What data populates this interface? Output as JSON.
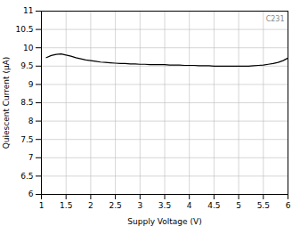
{
  "chart_data": {
    "type": "line",
    "xlabel": "Supply Voltage (V)",
    "ylabel": "Quiescent Current (μA)",
    "x": [
      1.1,
      1.2,
      1.3,
      1.4,
      1.5,
      1.6,
      1.7,
      1.8,
      1.9,
      2.0,
      2.1,
      2.2,
      2.3,
      2.4,
      2.5,
      2.6,
      2.7,
      2.8,
      2.9,
      3.0,
      3.1,
      3.2,
      3.3,
      3.4,
      3.5,
      3.6,
      3.7,
      3.8,
      3.9,
      4.0,
      4.1,
      4.2,
      4.3,
      4.4,
      4.5,
      4.6,
      4.7,
      4.8,
      4.9,
      5.0,
      5.1,
      5.2,
      5.3,
      5.4,
      5.5,
      5.6,
      5.7,
      5.8,
      5.9,
      6.0
    ],
    "series": [
      {
        "name": "Quiescent Current",
        "color": "#000000",
        "values": [
          9.73,
          9.79,
          9.82,
          9.83,
          9.8,
          9.77,
          9.73,
          9.7,
          9.67,
          9.65,
          9.63,
          9.61,
          9.6,
          9.59,
          9.58,
          9.57,
          9.57,
          9.56,
          9.56,
          9.55,
          9.55,
          9.54,
          9.54,
          9.54,
          9.54,
          9.53,
          9.53,
          9.53,
          9.52,
          9.52,
          9.52,
          9.51,
          9.51,
          9.51,
          9.5,
          9.5,
          9.5,
          9.5,
          9.5,
          9.5,
          9.5,
          9.5,
          9.51,
          9.52,
          9.53,
          9.55,
          9.57,
          9.6,
          9.65,
          9.72
        ]
      }
    ],
    "xlim": [
      1,
      6
    ],
    "ylim": [
      6,
      11
    ],
    "xticks": [
      1,
      1.5,
      2,
      2.5,
      3,
      3.5,
      4,
      4.5,
      5,
      5.5,
      6
    ],
    "yticks": [
      6,
      6.5,
      7,
      7.5,
      8,
      8.5,
      9,
      9.5,
      10,
      10.5,
      11
    ],
    "grid": true,
    "annotations": [
      "C231"
    ]
  }
}
